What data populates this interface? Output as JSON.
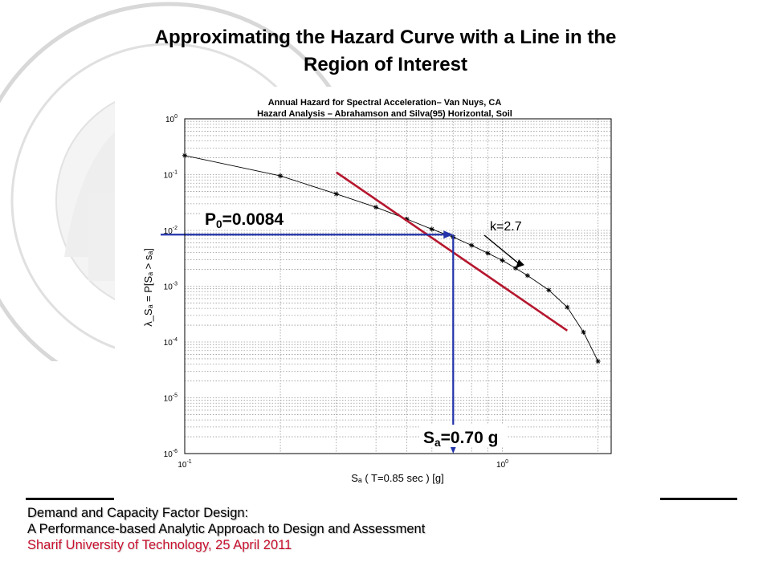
{
  "slide": {
    "title_line1": "Approximating the Hazard Curve with a Line in the",
    "title_line2": "Region of Interest",
    "footer_line1": "Demand and Capacity Factor Design:",
    "footer_line2": "A Performance-based Analytic Approach to Design and Assessment",
    "footer_line3": "Sharif University of Technology, 25 April 2011",
    "footer_line3_color": "#c8102e"
  },
  "chart_data": {
    "type": "line",
    "title": "Annual Hazard for Spectral Acceleration– Van Nuys, CA",
    "subtitle": "Hazard Analysis – Abrahamson and Silva(95) Horizontal, Soil",
    "xlabel": "Sₐ ( T=0.85 sec ) [g]",
    "ylabel": "λ_Sₐ = P[Sₐ > sₐ]",
    "xscale": "log",
    "yscale": "log",
    "xlim": [
      0.1,
      2.2
    ],
    "ylim": [
      1e-06,
      1
    ],
    "grid": true,
    "x_ticks": [
      {
        "value": 0.1,
        "mantissa": "10",
        "exp": "-1"
      },
      {
        "value": 1,
        "mantissa": "10",
        "exp": "0"
      }
    ],
    "y_ticks": [
      {
        "value": 1,
        "mantissa": "10",
        "exp": "0"
      },
      {
        "value": 0.1,
        "mantissa": "10",
        "exp": "-1"
      },
      {
        "value": 0.01,
        "mantissa": "10",
        "exp": "-2"
      },
      {
        "value": 0.001,
        "mantissa": "10",
        "exp": "-3"
      },
      {
        "value": 0.0001,
        "mantissa": "10",
        "exp": "-4"
      },
      {
        "value": 1e-05,
        "mantissa": "10",
        "exp": "-5"
      },
      {
        "value": 1e-06,
        "mantissa": "10",
        "exp": "-6"
      }
    ],
    "series": [
      {
        "color": "#000000",
        "marker": "star",
        "x": [
          0.1,
          0.2,
          0.3,
          0.4,
          0.5,
          0.6,
          0.7,
          0.8,
          0.9,
          1.0,
          1.1,
          1.2,
          1.4,
          1.6,
          1.8,
          2.0
        ],
        "y": [
          0.22,
          0.095,
          0.045,
          0.026,
          0.016,
          0.0105,
          0.0076,
          0.0054,
          0.0039,
          0.0029,
          0.0021,
          0.00155,
          0.00085,
          0.00042,
          0.00015,
          4.5e-05
        ]
      }
    ],
    "fit_line": {
      "color": "#b5172e",
      "x": [
        0.3,
        1.6
      ],
      "y": [
        0.11,
        0.00016
      ]
    },
    "reference_lines": {
      "color": "#2233aa",
      "x": 0.7,
      "y": 0.0084
    },
    "annotations": {
      "p0": {
        "base": "P",
        "sub": "0",
        "rest": "=0.0084"
      },
      "k": "k=2.7",
      "sa": {
        "base": "S",
        "sub": "a",
        "rest": "=0.70 g"
      }
    }
  }
}
